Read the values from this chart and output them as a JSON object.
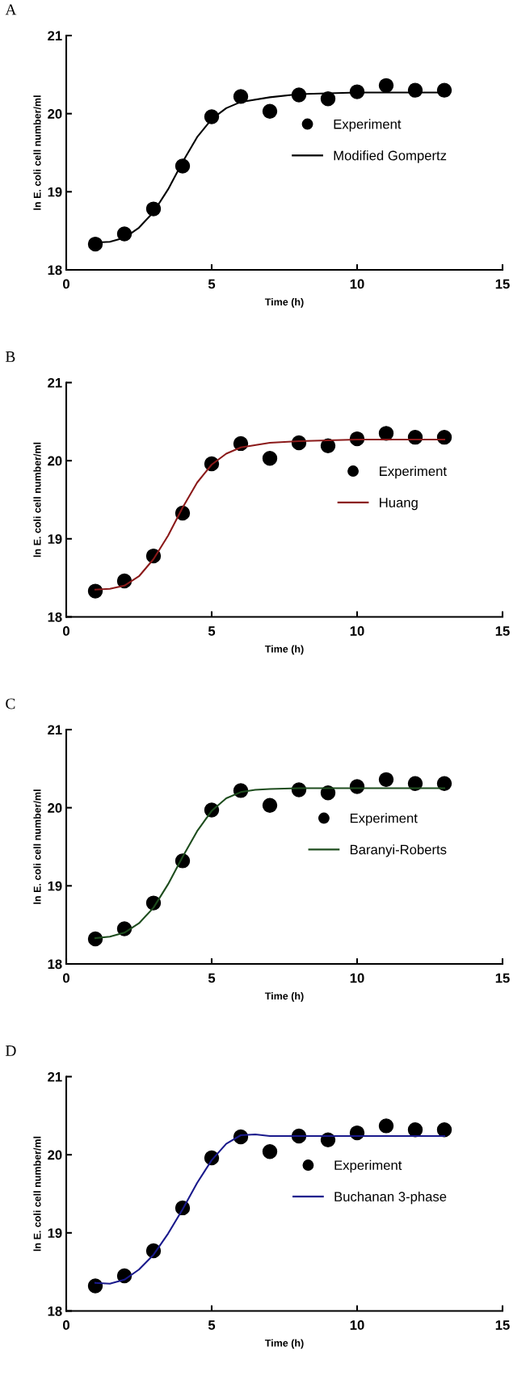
{
  "chart_data": [
    {
      "type": "scatter",
      "title": "A",
      "xlabel": "Time (h)",
      "ylabel": "ln E. coli cell number/ml",
      "xlim": [
        0,
        15
      ],
      "ylim": [
        18,
        21
      ],
      "xticks": [
        0,
        5,
        10,
        15
      ],
      "yticks": [
        18,
        19,
        20,
        21
      ],
      "grid": false,
      "legend": "right",
      "series": [
        {
          "name": "Experiment",
          "marker": "circle",
          "color": "#000000",
          "x": [
            1,
            2,
            3,
            4,
            5,
            6,
            7,
            8,
            9,
            10,
            11,
            12,
            13
          ],
          "values": [
            18.33,
            18.46,
            18.78,
            19.33,
            19.96,
            20.22,
            20.03,
            20.24,
            20.19,
            20.28,
            20.36,
            20.3,
            20.3
          ]
        },
        {
          "name": "Modified Gompertz",
          "type": "line",
          "line_style": "solid",
          "color": "#000000",
          "x": [
            1,
            1.5,
            2,
            2.5,
            3,
            3.5,
            4,
            4.5,
            5,
            5.5,
            6,
            7,
            8,
            9,
            10,
            11,
            12,
            13
          ],
          "values": [
            18.35,
            18.36,
            18.41,
            18.54,
            18.74,
            19.03,
            19.38,
            19.7,
            19.93,
            20.07,
            20.15,
            20.21,
            20.25,
            20.26,
            20.27,
            20.27,
            20.27,
            20.27
          ]
        }
      ]
    },
    {
      "type": "scatter",
      "title": "B",
      "xlabel": "Time (h)",
      "ylabel": "ln E. coli cell number/ml",
      "xlim": [
        0,
        15
      ],
      "ylim": [
        18,
        21
      ],
      "xticks": [
        0,
        5,
        10,
        15
      ],
      "yticks": [
        18,
        19,
        20,
        21
      ],
      "grid": false,
      "legend": "right",
      "series": [
        {
          "name": "Experiment",
          "marker": "circle",
          "color": "#000000",
          "x": [
            1,
            2,
            3,
            4,
            5,
            6,
            7,
            8,
            9,
            10,
            11,
            12,
            13
          ],
          "values": [
            18.33,
            18.46,
            18.78,
            19.33,
            19.96,
            20.22,
            20.03,
            20.23,
            20.19,
            20.28,
            20.35,
            20.3,
            20.3
          ]
        },
        {
          "name": "Huang",
          "type": "line",
          "line_style": "solid",
          "color": "#8b1a1a",
          "x": [
            1,
            1.5,
            2,
            2.5,
            3,
            3.5,
            4,
            4.5,
            5,
            5.5,
            6,
            7,
            8,
            9,
            10,
            11,
            12,
            13
          ],
          "values": [
            18.35,
            18.36,
            18.4,
            18.52,
            18.74,
            19.04,
            19.4,
            19.72,
            19.95,
            20.09,
            20.17,
            20.23,
            20.25,
            20.26,
            20.27,
            20.27,
            20.27,
            20.27
          ]
        }
      ]
    },
    {
      "type": "scatter",
      "title": "C",
      "xlabel": "Time (h)",
      "ylabel": "ln E. coli cell number/ml",
      "xlim": [
        0,
        15
      ],
      "ylim": [
        18,
        21
      ],
      "xticks": [
        0,
        5,
        10,
        15
      ],
      "yticks": [
        18,
        19,
        20,
        21
      ],
      "grid": false,
      "legend": "right",
      "series": [
        {
          "name": "Experiment",
          "marker": "circle",
          "color": "#000000",
          "x": [
            1,
            2,
            3,
            4,
            5,
            6,
            7,
            8,
            9,
            10,
            11,
            12,
            13
          ],
          "values": [
            18.32,
            18.45,
            18.78,
            19.32,
            19.97,
            20.22,
            20.03,
            20.23,
            20.19,
            20.27,
            20.36,
            20.31,
            20.31
          ]
        },
        {
          "name": "Baranyi-Roberts",
          "type": "line",
          "line_style": "solid",
          "color": "#1e4d1e",
          "x": [
            1,
            1.5,
            2,
            2.5,
            3,
            3.5,
            4,
            4.5,
            5,
            5.5,
            6,
            6.5,
            7,
            8,
            9,
            10,
            11,
            12,
            13
          ],
          "values": [
            18.33,
            18.35,
            18.4,
            18.52,
            18.72,
            19.02,
            19.37,
            19.7,
            19.96,
            20.12,
            20.2,
            20.23,
            20.24,
            20.25,
            20.25,
            20.25,
            20.25,
            20.25,
            20.25
          ]
        }
      ]
    },
    {
      "type": "scatter",
      "title": "D",
      "xlabel": "Time (h)",
      "ylabel": "ln E. coli cell number/ml",
      "xlim": [
        0,
        15
      ],
      "ylim": [
        18,
        21
      ],
      "xticks": [
        0,
        5,
        10,
        15
      ],
      "yticks": [
        18,
        19,
        20,
        21
      ],
      "grid": false,
      "legend": "right",
      "series": [
        {
          "name": "Experiment",
          "marker": "circle",
          "color": "#000000",
          "x": [
            1,
            2,
            3,
            4,
            5,
            6,
            7,
            8,
            9,
            10,
            11,
            12,
            13
          ],
          "values": [
            18.32,
            18.45,
            18.77,
            19.32,
            19.96,
            20.23,
            20.04,
            20.24,
            20.19,
            20.28,
            20.37,
            20.32,
            20.32
          ]
        },
        {
          "name": "Buchanan 3-phase",
          "type": "line",
          "line_style": "solid",
          "color": "#1a1a8c",
          "x": [
            1,
            1.5,
            2,
            2.5,
            3,
            3.5,
            4,
            4.5,
            5,
            5.5,
            6,
            6.5,
            7,
            8,
            9,
            10,
            11,
            12,
            13
          ],
          "values": [
            18.36,
            18.35,
            18.4,
            18.53,
            18.72,
            18.99,
            19.3,
            19.64,
            19.93,
            20.14,
            20.25,
            20.26,
            20.24,
            20.24,
            20.24,
            20.24,
            20.24,
            20.24,
            20.24
          ]
        }
      ]
    }
  ]
}
